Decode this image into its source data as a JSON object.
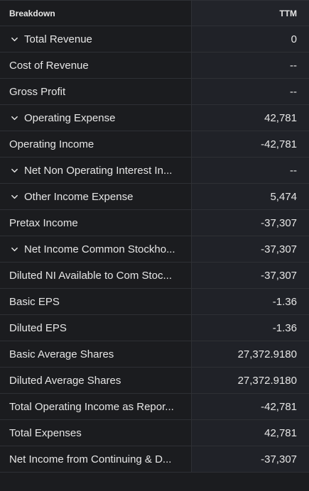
{
  "header": {
    "breakdown_label": "Breakdown",
    "period_label": "TTM"
  },
  "rows": [
    {
      "label": "Total Revenue",
      "value": "0",
      "expandable": true
    },
    {
      "label": "Cost of Revenue",
      "value": "--",
      "expandable": false
    },
    {
      "label": "Gross Profit",
      "value": "--",
      "expandable": false
    },
    {
      "label": "Operating Expense",
      "value": "42,781",
      "expandable": true
    },
    {
      "label": "Operating Income",
      "value": "-42,781",
      "expandable": false
    },
    {
      "label": "Net Non Operating Interest In...",
      "value": "--",
      "expandable": true
    },
    {
      "label": "Other Income Expense",
      "value": "5,474",
      "expandable": true
    },
    {
      "label": "Pretax Income",
      "value": "-37,307",
      "expandable": false
    },
    {
      "label": "Net Income Common Stockho...",
      "value": "-37,307",
      "expandable": true
    },
    {
      "label": "Diluted NI Available to Com Stoc...",
      "value": "-37,307",
      "expandable": false
    },
    {
      "label": "Basic EPS",
      "value": "-1.36",
      "expandable": false
    },
    {
      "label": "Diluted EPS",
      "value": "-1.36",
      "expandable": false
    },
    {
      "label": "Basic Average Shares",
      "value": "27,372.9180",
      "expandable": false
    },
    {
      "label": "Diluted Average Shares",
      "value": "27,372.9180",
      "expandable": false
    },
    {
      "label": "Total Operating Income as Repor...",
      "value": "-42,781",
      "expandable": false
    },
    {
      "label": "Total Expenses",
      "value": "42,781",
      "expandable": false
    },
    {
      "label": "Net Income from Continuing & D...",
      "value": "-37,307",
      "expandable": false
    }
  ],
  "icons": {
    "expand": "chevron-down-icon"
  },
  "colors": {
    "background": "#1b1c1f",
    "value_column": "#202228",
    "border": "#2e3035",
    "text": "#e6e6e6"
  }
}
